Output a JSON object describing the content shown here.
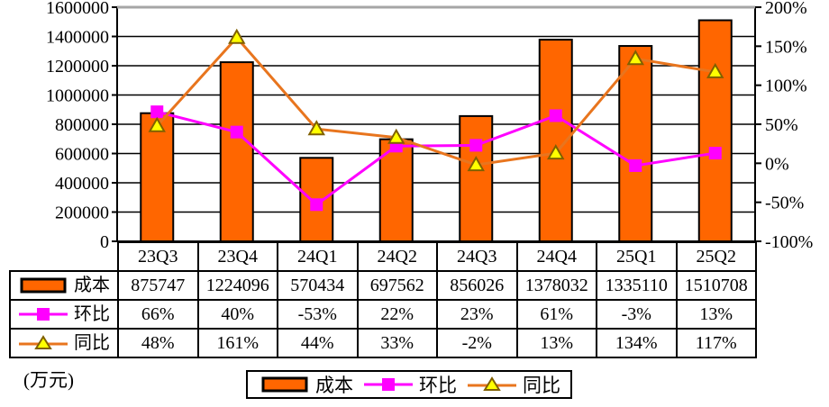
{
  "chart_data": {
    "type": "bar",
    "subtype": "bar-line-combo",
    "title": "",
    "unit_label": "(万元)",
    "categories": [
      "23Q3",
      "23Q4",
      "24Q1",
      "24Q2",
      "24Q3",
      "24Q4",
      "25Q1",
      "25Q2"
    ],
    "series": [
      {
        "name": "成本",
        "type": "bar",
        "axis": "left",
        "color": "#FF6600",
        "values": [
          875747,
          1224096,
          570434,
          697562,
          856026,
          1378032,
          1335110,
          1510708
        ]
      },
      {
        "name": "环比",
        "type": "line",
        "marker": "square",
        "axis": "right",
        "color": "#FF00FF",
        "values_percent": [
          66,
          40,
          -53,
          22,
          23,
          61,
          -3,
          13
        ]
      },
      {
        "name": "同比",
        "type": "line",
        "marker": "triangle",
        "axis": "right",
        "color": "#E8751E",
        "marker_fill": "#FFFF00",
        "marker_edge": "#806000",
        "values_percent": [
          48,
          161,
          44,
          33,
          -2,
          13,
          134,
          117
        ]
      }
    ],
    "left_axis": {
      "min": 0,
      "max": 1600000,
      "step": 200000,
      "tick_labels": [
        "0",
        "200000",
        "400000",
        "600000",
        "800000",
        "1000000",
        "1200000",
        "1400000",
        "1600000"
      ]
    },
    "right_axis": {
      "min": -100,
      "max": 200,
      "step": 50,
      "tick_labels": [
        "-100%",
        "-50%",
        "0%",
        "50%",
        "100%",
        "150%",
        "200%"
      ]
    },
    "grid": true,
    "legend_position": "bottom"
  },
  "table": {
    "col_headers": [
      "23Q3",
      "23Q4",
      "24Q1",
      "24Q2",
      "24Q3",
      "24Q4",
      "25Q1",
      "25Q2"
    ],
    "rows": [
      {
        "label": "成本",
        "values": [
          "875747",
          "1224096",
          "570434",
          "697562",
          "856026",
          "1378032",
          "1335110",
          "1510708"
        ]
      },
      {
        "label": "环比",
        "values": [
          "66%",
          "40%",
          "-53%",
          "22%",
          "23%",
          "61%",
          "-3%",
          "13%"
        ]
      },
      {
        "label": "同比",
        "values": [
          "48%",
          "161%",
          "44%",
          "33%",
          "-2%",
          "13%",
          "134%",
          "117%"
        ]
      }
    ]
  },
  "legend": {
    "items": [
      {
        "label": "成本"
      },
      {
        "label": "环比"
      },
      {
        "label": "同比"
      }
    ]
  },
  "colors": {
    "bar": "#FF6600",
    "huanbi_line": "#FF00FF",
    "tongbi_line": "#E8751E",
    "marker_fill": "#FFFF00",
    "marker_edge": "#806000",
    "plot_top_border": "#A6A6A6"
  }
}
